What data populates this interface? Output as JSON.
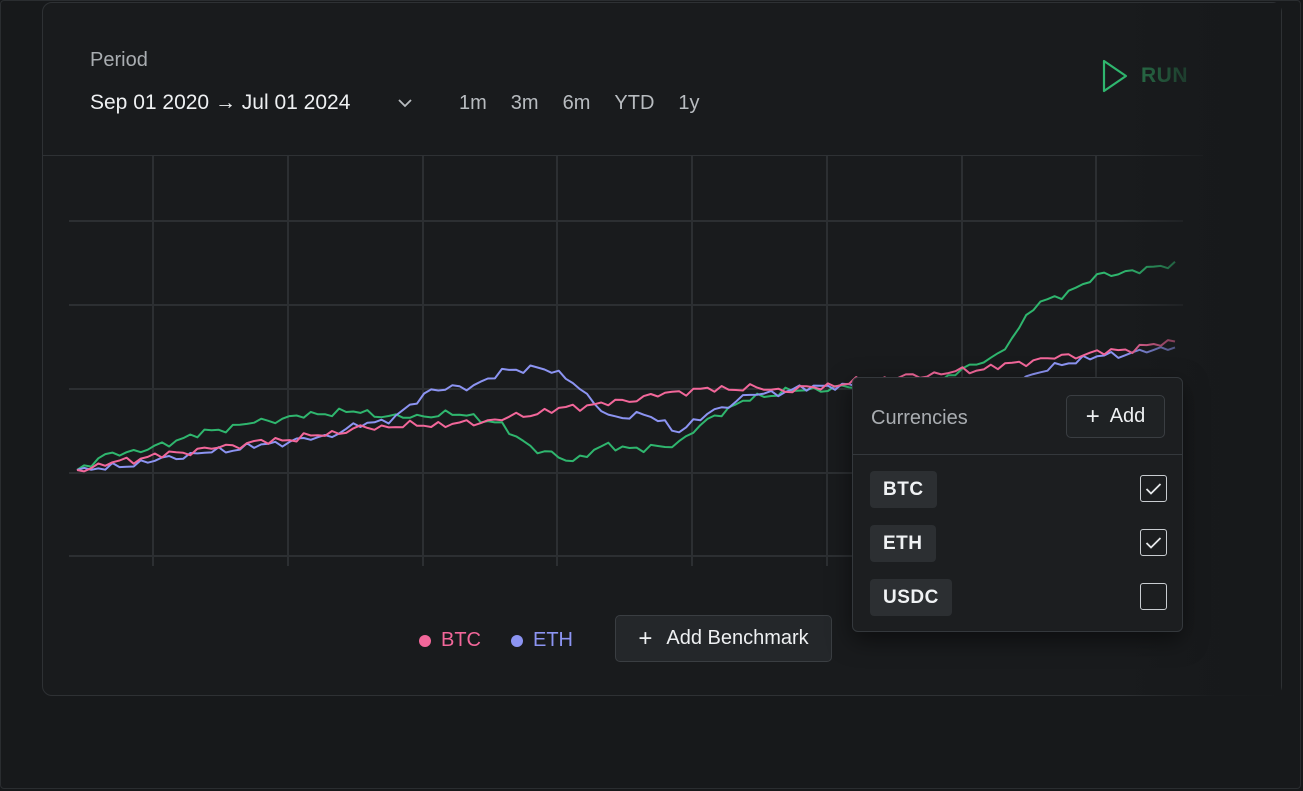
{
  "period": {
    "label": "Period",
    "range": "Sep 01 2020 → Jul 01 2024",
    "presets": [
      "1m",
      "3m",
      "6m",
      "YTD",
      "1y"
    ]
  },
  "run_label": "RUN",
  "legend": [
    {
      "name": "BTC",
      "color": "#f2679a"
    },
    {
      "name": "ETH",
      "color": "#8c94f2"
    }
  ],
  "add_benchmark_label": "Add Benchmark",
  "currencies_panel": {
    "title": "Currencies",
    "add_label": "Add",
    "items": [
      {
        "name": "BTC",
        "checked": true
      },
      {
        "name": "ETH",
        "checked": true
      },
      {
        "name": "USDC",
        "checked": false
      }
    ]
  },
  "colors": {
    "btc": "#f2679a",
    "eth": "#8c94f2",
    "green_series": "#2fb66e",
    "run": "#2a7a4d"
  },
  "chart_data": {
    "type": "line",
    "title": "",
    "xlabel": "",
    "ylabel": "",
    "grid": true,
    "series": [
      {
        "name": "BTC",
        "color": "#f2679a",
        "values": [
          0.0,
          0.6,
          1.1,
          1.5,
          1.9,
          2.3,
          2.6,
          3.0,
          3.5,
          3.7,
          3.8,
          3.9,
          4.3,
          4.8,
          5.3,
          5.6,
          6.1,
          6.6,
          6.8,
          6.9,
          6.7,
          7.0,
          7.4,
          7.7,
          8.0,
          8.3,
          8.7,
          9.2,
          9.6,
          9.9,
          10.3,
          10.8
        ]
      },
      {
        "name": "ETH",
        "color": "#8c94f2",
        "values": [
          0.0,
          0.2,
          0.7,
          1.2,
          1.6,
          2.0,
          2.4,
          2.8,
          3.8,
          4.4,
          6.8,
          6.9,
          8.2,
          8.7,
          7.5,
          4.4,
          4.7,
          3.3,
          5.0,
          6.3,
          6.6,
          7.1,
          7.0,
          6.8,
          7.1,
          7.0,
          7.2,
          8.0,
          9.1,
          9.6,
          9.9,
          10.3
        ]
      },
      {
        "color": "#2fb66e",
        "values": [
          0.0,
          1.4,
          1.7,
          2.7,
          3.4,
          4.0,
          4.4,
          4.8,
          4.9,
          4.4,
          4.6,
          4.7,
          3.7,
          1.6,
          0.8,
          2.1,
          1.7,
          2.3,
          4.6,
          6.0,
          6.6,
          6.8,
          7.0,
          5.3,
          6.5,
          8.6,
          9.5,
          13.7,
          15.0,
          16.5,
          16.7,
          17.5
        ]
      }
    ]
  }
}
